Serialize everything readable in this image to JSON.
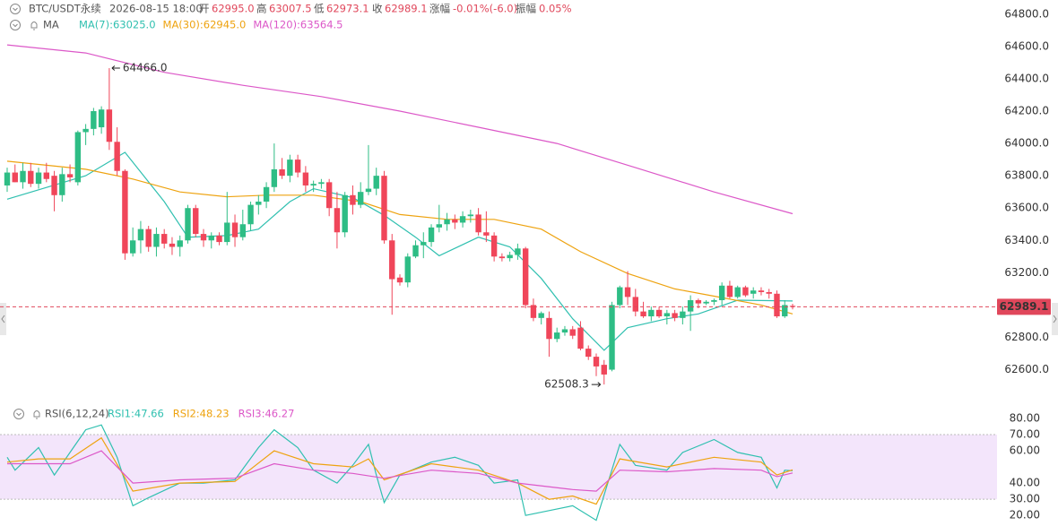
{
  "header": {
    "symbol": "BTC/USDT永续",
    "time": "2026-08-15 18:00",
    "open_label": "开",
    "open": "62995.0",
    "high_label": "高",
    "high": "63007.5",
    "low_label": "低",
    "low": "62973.1",
    "close_label": "收",
    "close": "62989.1",
    "change_label": "涨幅",
    "change": "-0.01%(-6.0)",
    "amplitude_label": "振幅",
    "amplitude": "0.05%"
  },
  "chart_data": [
    {
      "type": "candlestick",
      "indicator_label": "MA",
      "up_color": "#2ebd85",
      "down_color": "#f0465a",
      "ylim": [
        62420,
        64860
      ],
      "yticks": [
        {
          "value": 62600,
          "label": "62600.0"
        },
        {
          "value": 62800,
          "label": "62800.0"
        },
        {
          "value": 63000,
          "label": "63000.0"
        },
        {
          "value": 63200,
          "label": "63200.0"
        },
        {
          "value": 63400,
          "label": "63400.0"
        },
        {
          "value": 63600,
          "label": "63600.0"
        },
        {
          "value": 63800,
          "label": "63800.0"
        },
        {
          "value": 64000,
          "label": "64000.0"
        },
        {
          "value": 64200,
          "label": "64200.0"
        },
        {
          "value": 64400,
          "label": "64400.0"
        },
        {
          "value": 64600,
          "label": "64600.0"
        },
        {
          "value": 64800,
          "label": "64800.0"
        }
      ],
      "grid": false,
      "candles": [
        [
          63740,
          63850,
          63700,
          63820
        ],
        [
          63820,
          63870,
          63760,
          63760
        ],
        [
          63760,
          63880,
          63720,
          63830
        ],
        [
          63830,
          63880,
          63730,
          63750
        ],
        [
          63750,
          63850,
          63720,
          63820
        ],
        [
          63820,
          63880,
          63760,
          63780
        ],
        [
          63800,
          63830,
          63580,
          63680
        ],
        [
          63680,
          63850,
          63640,
          63810
        ],
        [
          63810,
          63870,
          63760,
          63790
        ],
        [
          63760,
          64080,
          63740,
          64070
        ],
        [
          64070,
          64120,
          63990,
          64090
        ],
        [
          64090,
          64220,
          64050,
          64200
        ],
        [
          64100,
          64230,
          64060,
          64210
        ],
        [
          64210,
          64466,
          63960,
          64010
        ],
        [
          64010,
          64100,
          63800,
          63830
        ],
        [
          63830,
          63840,
          63280,
          63320
        ],
        [
          63320,
          63480,
          63300,
          63400
        ],
        [
          63400,
          63520,
          63320,
          63470
        ],
        [
          63470,
          63490,
          63330,
          63360
        ],
        [
          63360,
          63480,
          63300,
          63440
        ],
        [
          63440,
          63470,
          63350,
          63380
        ],
        [
          63380,
          63420,
          63310,
          63360
        ],
        [
          63360,
          63430,
          63300,
          63400
        ],
        [
          63400,
          63620,
          63380,
          63600
        ],
        [
          63600,
          63620,
          63420,
          63440
        ],
        [
          63440,
          63470,
          63360,
          63400
        ],
        [
          63400,
          63450,
          63350,
          63430
        ],
        [
          63430,
          63450,
          63370,
          63390
        ],
        [
          63390,
          63700,
          63370,
          63510
        ],
        [
          63510,
          63560,
          63360,
          63420
        ],
        [
          63420,
          63590,
          63400,
          63500
        ],
        [
          63500,
          63640,
          63460,
          63620
        ],
        [
          63620,
          63680,
          63560,
          63640
        ],
        [
          63640,
          63760,
          63600,
          63730
        ],
        [
          63730,
          64000,
          63700,
          63840
        ],
        [
          63840,
          63910,
          63780,
          63800
        ],
        [
          63800,
          63930,
          63760,
          63900
        ],
        [
          63900,
          63930,
          63790,
          63820
        ],
        [
          63820,
          63860,
          63700,
          63740
        ],
        [
          63740,
          63770,
          63700,
          63750
        ],
        [
          63750,
          63780,
          63720,
          63760
        ],
        [
          63760,
          63780,
          63550,
          63600
        ],
        [
          63600,
          63700,
          63350,
          63450
        ],
        [
          63450,
          63700,
          63420,
          63680
        ],
        [
          63680,
          63740,
          63560,
          63620
        ],
        [
          63620,
          63760,
          63600,
          63700
        ],
        [
          63700,
          63990,
          63680,
          63720
        ],
        [
          63720,
          63850,
          63680,
          63800
        ],
        [
          63800,
          63830,
          63380,
          63400
        ],
        [
          63400,
          63440,
          62940,
          63160
        ],
        [
          63170,
          63190,
          63120,
          63140
        ],
        [
          63140,
          63320,
          63110,
          63300
        ],
        [
          63300,
          63400,
          63290,
          63370
        ],
        [
          63370,
          63450,
          63290,
          63390
        ],
        [
          63390,
          63500,
          63360,
          63480
        ],
        [
          63480,
          63620,
          63450,
          63500
        ],
        [
          63500,
          63570,
          63460,
          63530
        ],
        [
          63530,
          63560,
          63470,
          63510
        ],
        [
          63510,
          63580,
          63480,
          63550
        ],
        [
          63550,
          63590,
          63510,
          63560
        ],
        [
          63560,
          63600,
          63430,
          63450
        ],
        [
          63450,
          63580,
          63390,
          63430
        ],
        [
          63430,
          63450,
          63270,
          63300
        ],
        [
          63300,
          63320,
          63270,
          63290
        ],
        [
          63290,
          63330,
          63270,
          63310
        ],
        [
          63310,
          63380,
          63280,
          63350
        ],
        [
          63350,
          63360,
          62980,
          63000
        ],
        [
          63000,
          63040,
          62900,
          62920
        ],
        [
          62920,
          62960,
          62880,
          62950
        ],
        [
          62920,
          62960,
          62680,
          62790
        ],
        [
          62790,
          62860,
          62770,
          62830
        ],
        [
          62830,
          62870,
          62810,
          62850
        ],
        [
          62850,
          62870,
          62790,
          62810
        ],
        [
          62860,
          62900,
          62720,
          62730
        ],
        [
          62730,
          62750,
          62660,
          62680
        ],
        [
          62680,
          62700,
          62560,
          62620
        ],
        [
          62630,
          62660,
          62508.3,
          62570
        ],
        [
          62600,
          63020,
          62590,
          63000
        ],
        [
          63000,
          63120,
          62980,
          63110
        ],
        [
          63110,
          63210,
          63000,
          63050
        ],
        [
          63050,
          63100,
          62930,
          62960
        ],
        [
          62960,
          63020,
          62920,
          62930
        ],
        [
          62930,
          62990,
          62900,
          62970
        ],
        [
          62970,
          62990,
          62920,
          62930
        ],
        [
          62930,
          62970,
          62880,
          62950
        ],
        [
          62950,
          62970,
          62900,
          62920
        ],
        [
          62920,
          62990,
          62880,
          62960
        ],
        [
          62960,
          63060,
          62840,
          63030
        ],
        [
          63030,
          63040,
          62980,
          63010
        ],
        [
          63010,
          63030,
          63000,
          63020
        ],
        [
          63020,
          63040,
          63000,
          63030
        ],
        [
          63030,
          63140,
          63000,
          63120
        ],
        [
          63120,
          63150,
          63040,
          63050
        ],
        [
          63050,
          63120,
          63040,
          63110
        ],
        [
          63110,
          63120,
          63050,
          63060
        ],
        [
          63070,
          63110,
          63040,
          63090
        ],
        [
          63090,
          63110,
          63060,
          63080
        ],
        [
          63080,
          63100,
          63040,
          63070
        ],
        [
          63070,
          63090,
          62920,
          62930
        ],
        [
          62930,
          63030,
          62920,
          63000
        ],
        [
          62995,
          63007.5,
          62973.1,
          62989.1
        ]
      ],
      "series": [
        {
          "name": "MA(7):63025.0",
          "color": "#30c0b0",
          "x": [
            0,
            10,
            15,
            20,
            23,
            28,
            32,
            36,
            39,
            44,
            48,
            52,
            55,
            60,
            64,
            68,
            72,
            76,
            79,
            84,
            88,
            93,
            100
          ],
          "values": [
            63655,
            63800,
            63945,
            63640,
            63420,
            63430,
            63470,
            63640,
            63720,
            63665,
            63555,
            63420,
            63305,
            63420,
            63360,
            63165,
            62915,
            62720,
            62860,
            62915,
            62945,
            63030,
            63025
          ]
        },
        {
          "name": "MA(30):62945.0",
          "color": "#eea310",
          "x": [
            0,
            10,
            16,
            22,
            28,
            33,
            39,
            45,
            50,
            56,
            62,
            68,
            73,
            79,
            85,
            90,
            96,
            100
          ],
          "values": [
            63890,
            63840,
            63780,
            63700,
            63670,
            63680,
            63680,
            63640,
            63560,
            63530,
            63530,
            63470,
            63330,
            63195,
            63100,
            63055,
            63000,
            62945
          ]
        },
        {
          "name": "MA(120):63564.5",
          "color": "#dc58c8",
          "x": [
            0,
            10,
            20,
            30,
            40,
            50,
            60,
            70,
            80,
            90,
            100
          ],
          "values": [
            64610,
            64560,
            64440,
            64360,
            64290,
            64200,
            64100,
            64000,
            63850,
            63700,
            63565
          ]
        }
      ],
      "annotations": [
        {
          "value": 64466,
          "label": "64466.0"
        },
        {
          "value": 62508.3,
          "label": "62508.3"
        }
      ]
    },
    {
      "type": "line",
      "title": "RSI(6,12,24)",
      "ylim": [
        14,
        85
      ],
      "yticks": [
        {
          "value": 20,
          "label": "20.00"
        },
        {
          "value": 30,
          "label": "30.00"
        },
        {
          "value": 40,
          "label": "40.00"
        },
        {
          "value": 60,
          "label": "60.00"
        },
        {
          "value": 70,
          "label": "70.00"
        },
        {
          "value": 80,
          "label": "80.00"
        }
      ],
      "band": [
        30,
        70
      ],
      "band_color": "#f3e5fb",
      "series": [
        {
          "name": "RSI1:47.66",
          "color": "#30c0b0",
          "x": [
            0,
            1,
            4,
            6,
            8,
            10,
            12,
            14,
            16,
            18,
            22,
            25,
            29,
            32,
            34,
            37,
            39,
            42,
            44,
            46,
            47,
            48,
            50,
            54,
            57,
            60,
            62,
            65,
            66,
            69,
            72,
            75,
            78,
            80,
            84,
            86,
            90,
            93,
            96,
            98,
            99,
            100
          ],
          "values": [
            56,
            48,
            62,
            45,
            59,
            73,
            76,
            56,
            26,
            31,
            40,
            40,
            42,
            62,
            73,
            62,
            48,
            40,
            51,
            64,
            45,
            28,
            45,
            53,
            56,
            51,
            40,
            42,
            20,
            23,
            26,
            17,
            64,
            51,
            48,
            59,
            67,
            59,
            56,
            37,
            48,
            47.66
          ]
        },
        {
          "name": "RSI2:48.23",
          "color": "#eea310",
          "x": [
            0,
            4,
            8,
            12,
            16,
            22,
            29,
            34,
            39,
            44,
            46,
            48,
            54,
            60,
            65,
            69,
            72,
            75,
            78,
            84,
            90,
            96,
            98,
            100
          ],
          "values": [
            53,
            55,
            55,
            68,
            35,
            40,
            41,
            60,
            52,
            50,
            55,
            42,
            52,
            48,
            40,
            30,
            32,
            27,
            55,
            50,
            56,
            53,
            45,
            48.23
          ]
        },
        {
          "name": "RSI3:46.27",
          "color": "#dc58c8",
          "x": [
            0,
            8,
            12,
            16,
            22,
            29,
            34,
            39,
            44,
            48,
            54,
            60,
            65,
            72,
            75,
            78,
            84,
            90,
            96,
            98,
            100
          ],
          "values": [
            52,
            52,
            60,
            40,
            42,
            43,
            52,
            48,
            46,
            43,
            48,
            46,
            40,
            36,
            35,
            48,
            47,
            49,
            48,
            44,
            46.27
          ]
        }
      ]
    }
  ]
}
